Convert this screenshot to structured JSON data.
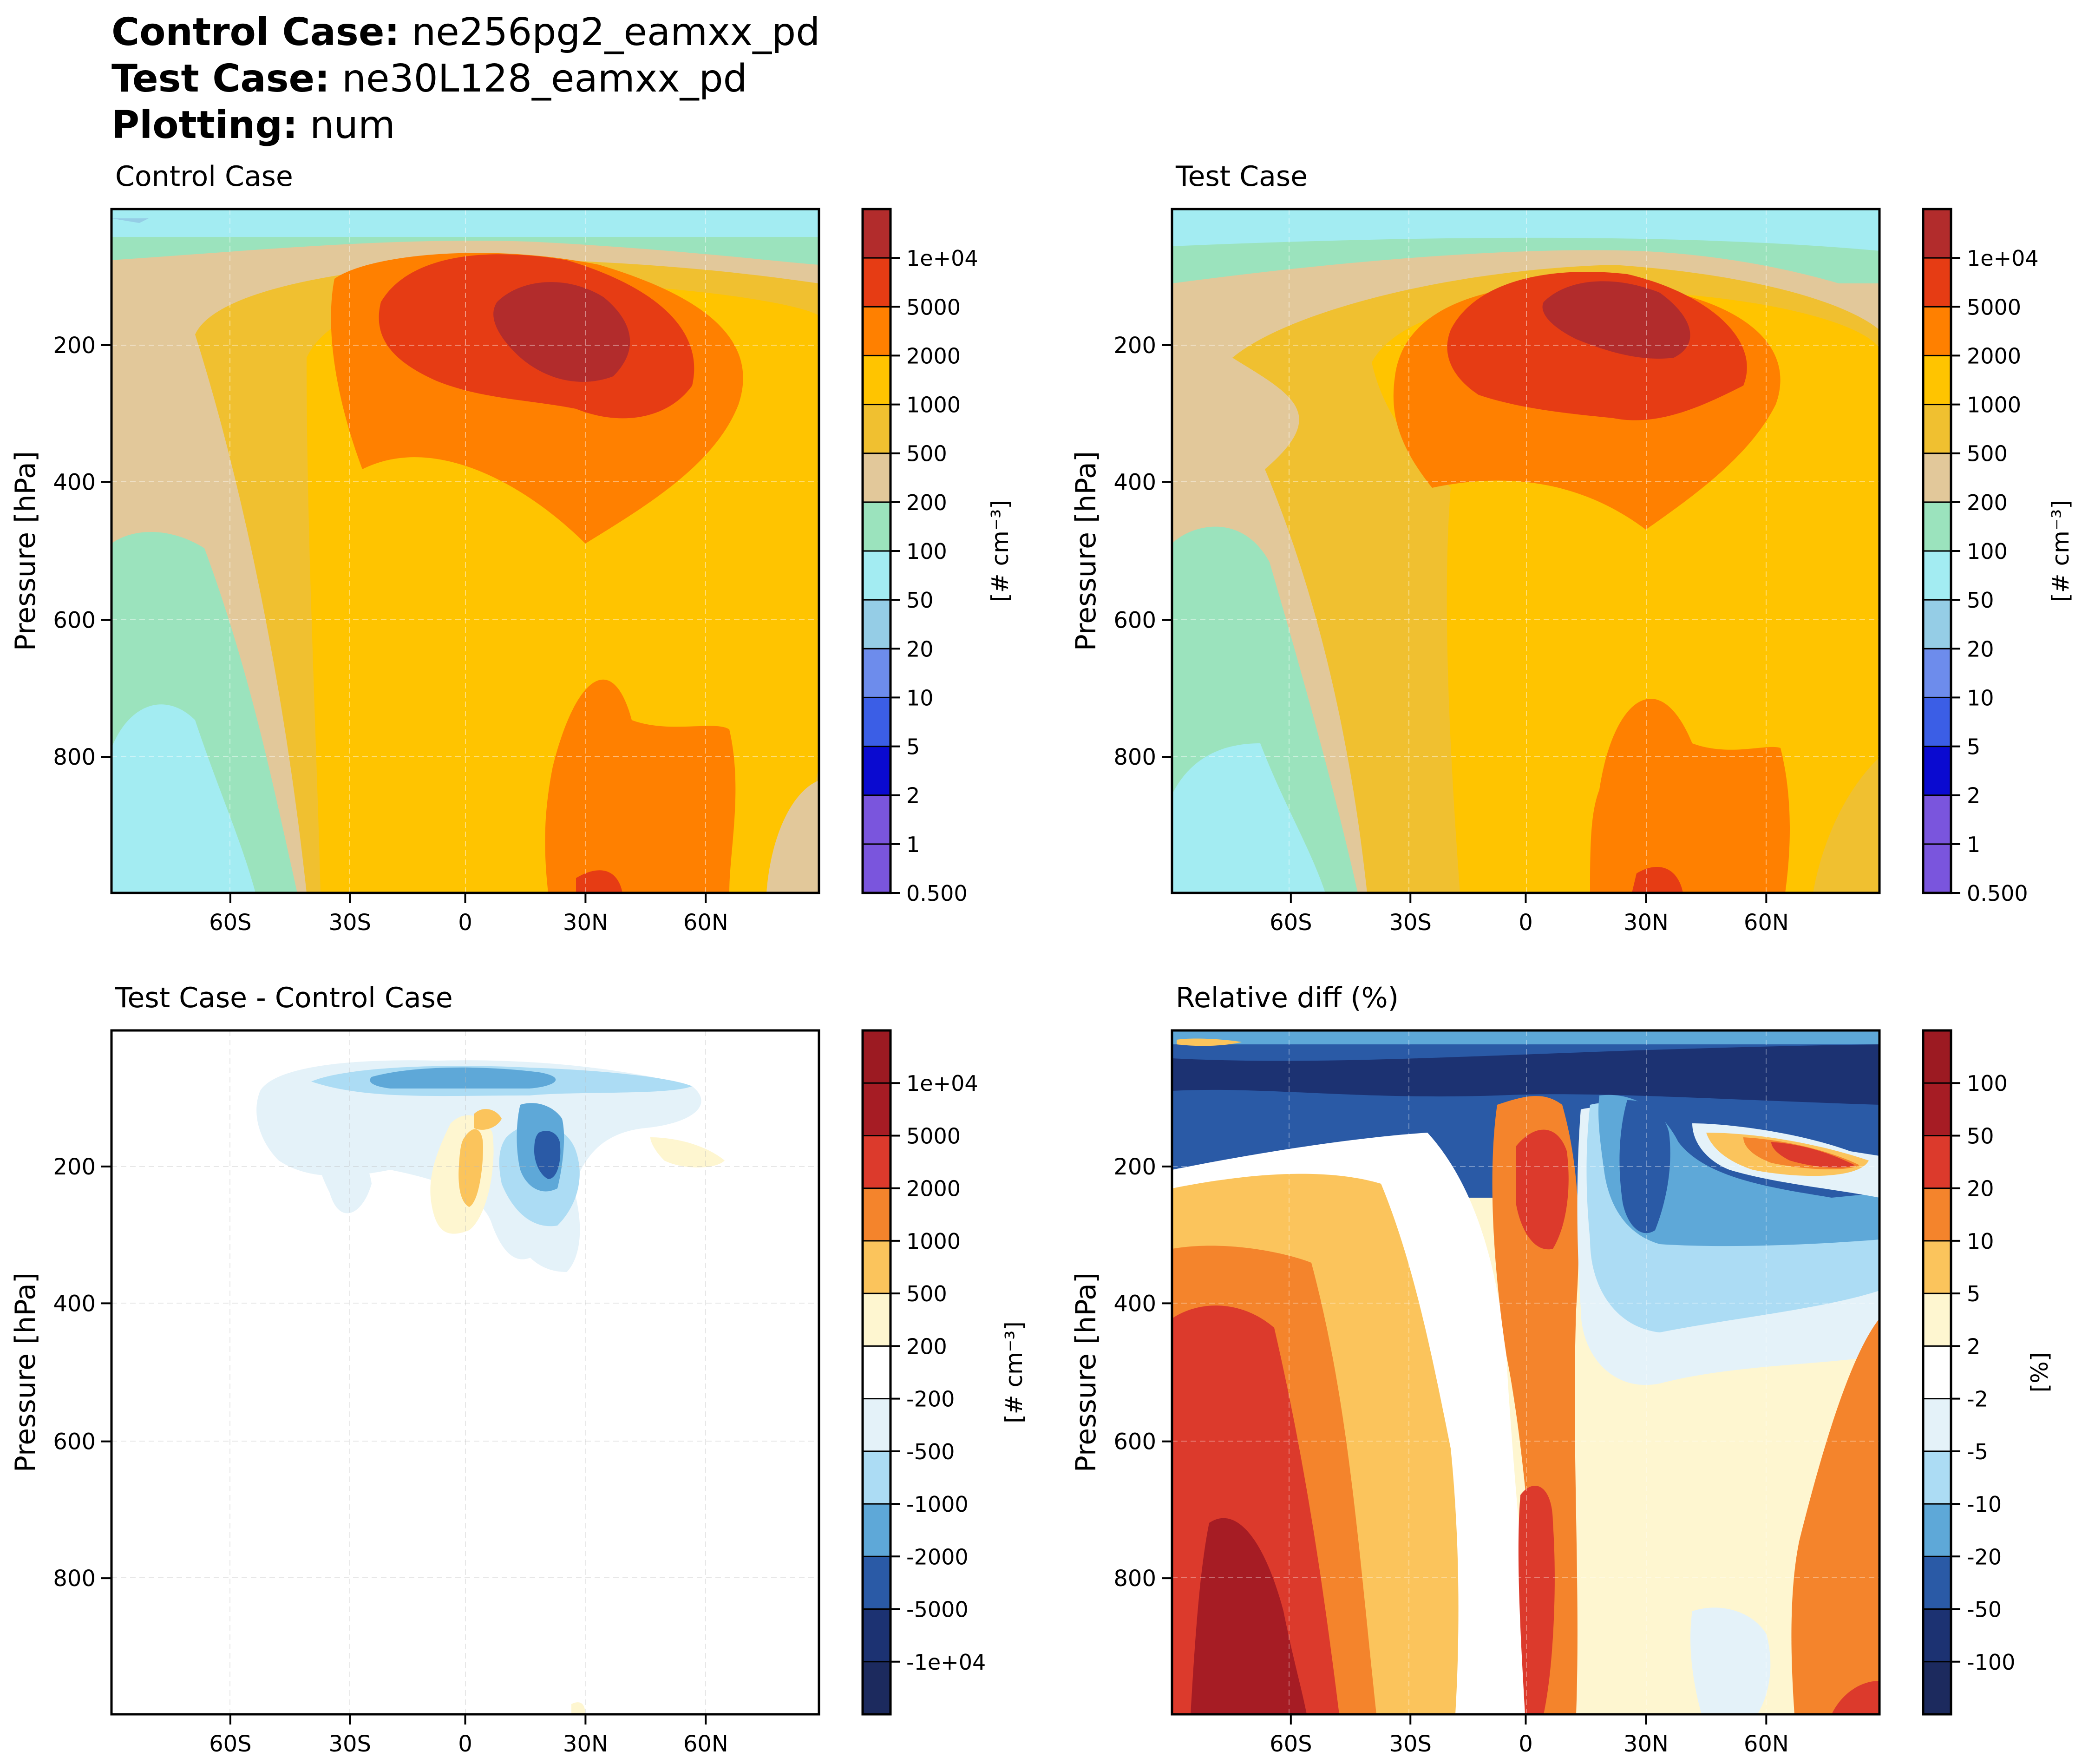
{
  "header": {
    "control_label": "Control Case",
    "control_value": "ne256pg2_eamxx_pd",
    "test_label": "Test Case",
    "test_value": "ne30L128_eamxx_pd",
    "plotting_label": "Plotting",
    "plotting_value": "num"
  },
  "chart_data": [
    {
      "type": "contour",
      "title": "Control Case",
      "ylabel": "Pressure [hPa]",
      "xticks": [
        "60S",
        "30S",
        "0",
        "30N",
        "60N"
      ],
      "yticks": [
        "200",
        "400",
        "600",
        "800"
      ],
      "colorbar_label": "[# cm⁻³]",
      "colorbar_ticks": [
        "1e+04",
        "5000",
        "2000",
        "1000",
        "500",
        "200",
        "100",
        "50",
        "20",
        "10",
        "5",
        "2",
        "1",
        "0.500"
      ],
      "colorbar_colors": [
        "#b22c2c",
        "#e63c14",
        "#ff8000",
        "#ffc400",
        "#f0c030",
        "#e2c89a",
        "#9be3bd",
        "#a3ecf2",
        "#95cde6",
        "#6d8cec",
        "#3b5ee6",
        "#0a0ad0",
        "#7a55dd",
        "#7a55dd"
      ]
    },
    {
      "type": "contour",
      "title": "Test Case",
      "ylabel": "Pressure [hPa]",
      "xticks": [
        "60S",
        "30S",
        "0",
        "30N",
        "60N"
      ],
      "yticks": [
        "200",
        "400",
        "600",
        "800"
      ],
      "colorbar_label": "[# cm⁻³]",
      "colorbar_ticks": [
        "1e+04",
        "5000",
        "2000",
        "1000",
        "500",
        "200",
        "100",
        "50",
        "20",
        "10",
        "5",
        "2",
        "1",
        "0.500"
      ],
      "colorbar_colors": [
        "#b22c2c",
        "#e63c14",
        "#ff8000",
        "#ffc400",
        "#f0c030",
        "#e2c89a",
        "#9be3bd",
        "#a3ecf2",
        "#95cde6",
        "#6d8cec",
        "#3b5ee6",
        "#0a0ad0",
        "#7a55dd",
        "#7a55dd"
      ]
    },
    {
      "type": "contour",
      "title": "Test Case - Control Case",
      "ylabel": "Pressure [hPa]",
      "xticks": [
        "60S",
        "30S",
        "0",
        "30N",
        "60N"
      ],
      "yticks": [
        "200",
        "400",
        "600",
        "800"
      ],
      "colorbar_label": "[# cm⁻³]",
      "colorbar_ticks": [
        "1e+04",
        "5000",
        "2000",
        "1000",
        "500",
        "200",
        "-200",
        "-500",
        "-1000",
        "-2000",
        "-5000",
        "-1e+04"
      ],
      "colorbar_colors": [
        "#9c1a22",
        "#a61c24",
        "#dc3a2c",
        "#f4842c",
        "#fbc45c",
        "#fef6d0",
        "#ffffff",
        "#e4f2f9",
        "#acdcf4",
        "#5ea8d8",
        "#2a5aa6",
        "#1c3272",
        "#1c2a5e"
      ]
    },
    {
      "type": "contour",
      "title": "Relative diff (%)",
      "ylabel": "Pressure [hPa]",
      "xticks": [
        "60S",
        "30S",
        "0",
        "30N",
        "60N"
      ],
      "yticks": [
        "200",
        "400",
        "600",
        "800"
      ],
      "colorbar_label": "[%]",
      "colorbar_ticks": [
        "100",
        "50",
        "20",
        "10",
        "5",
        "2",
        "-2",
        "-5",
        "-10",
        "-20",
        "-50",
        "-100"
      ],
      "colorbar_colors": [
        "#9c1a22",
        "#a61c24",
        "#dc3a2c",
        "#f4842c",
        "#fbc45c",
        "#fef6d0",
        "#ffffff",
        "#e4f2f9",
        "#acdcf4",
        "#5ea8d8",
        "#2a5aa6",
        "#1c3272",
        "#1c2a5e"
      ]
    }
  ]
}
